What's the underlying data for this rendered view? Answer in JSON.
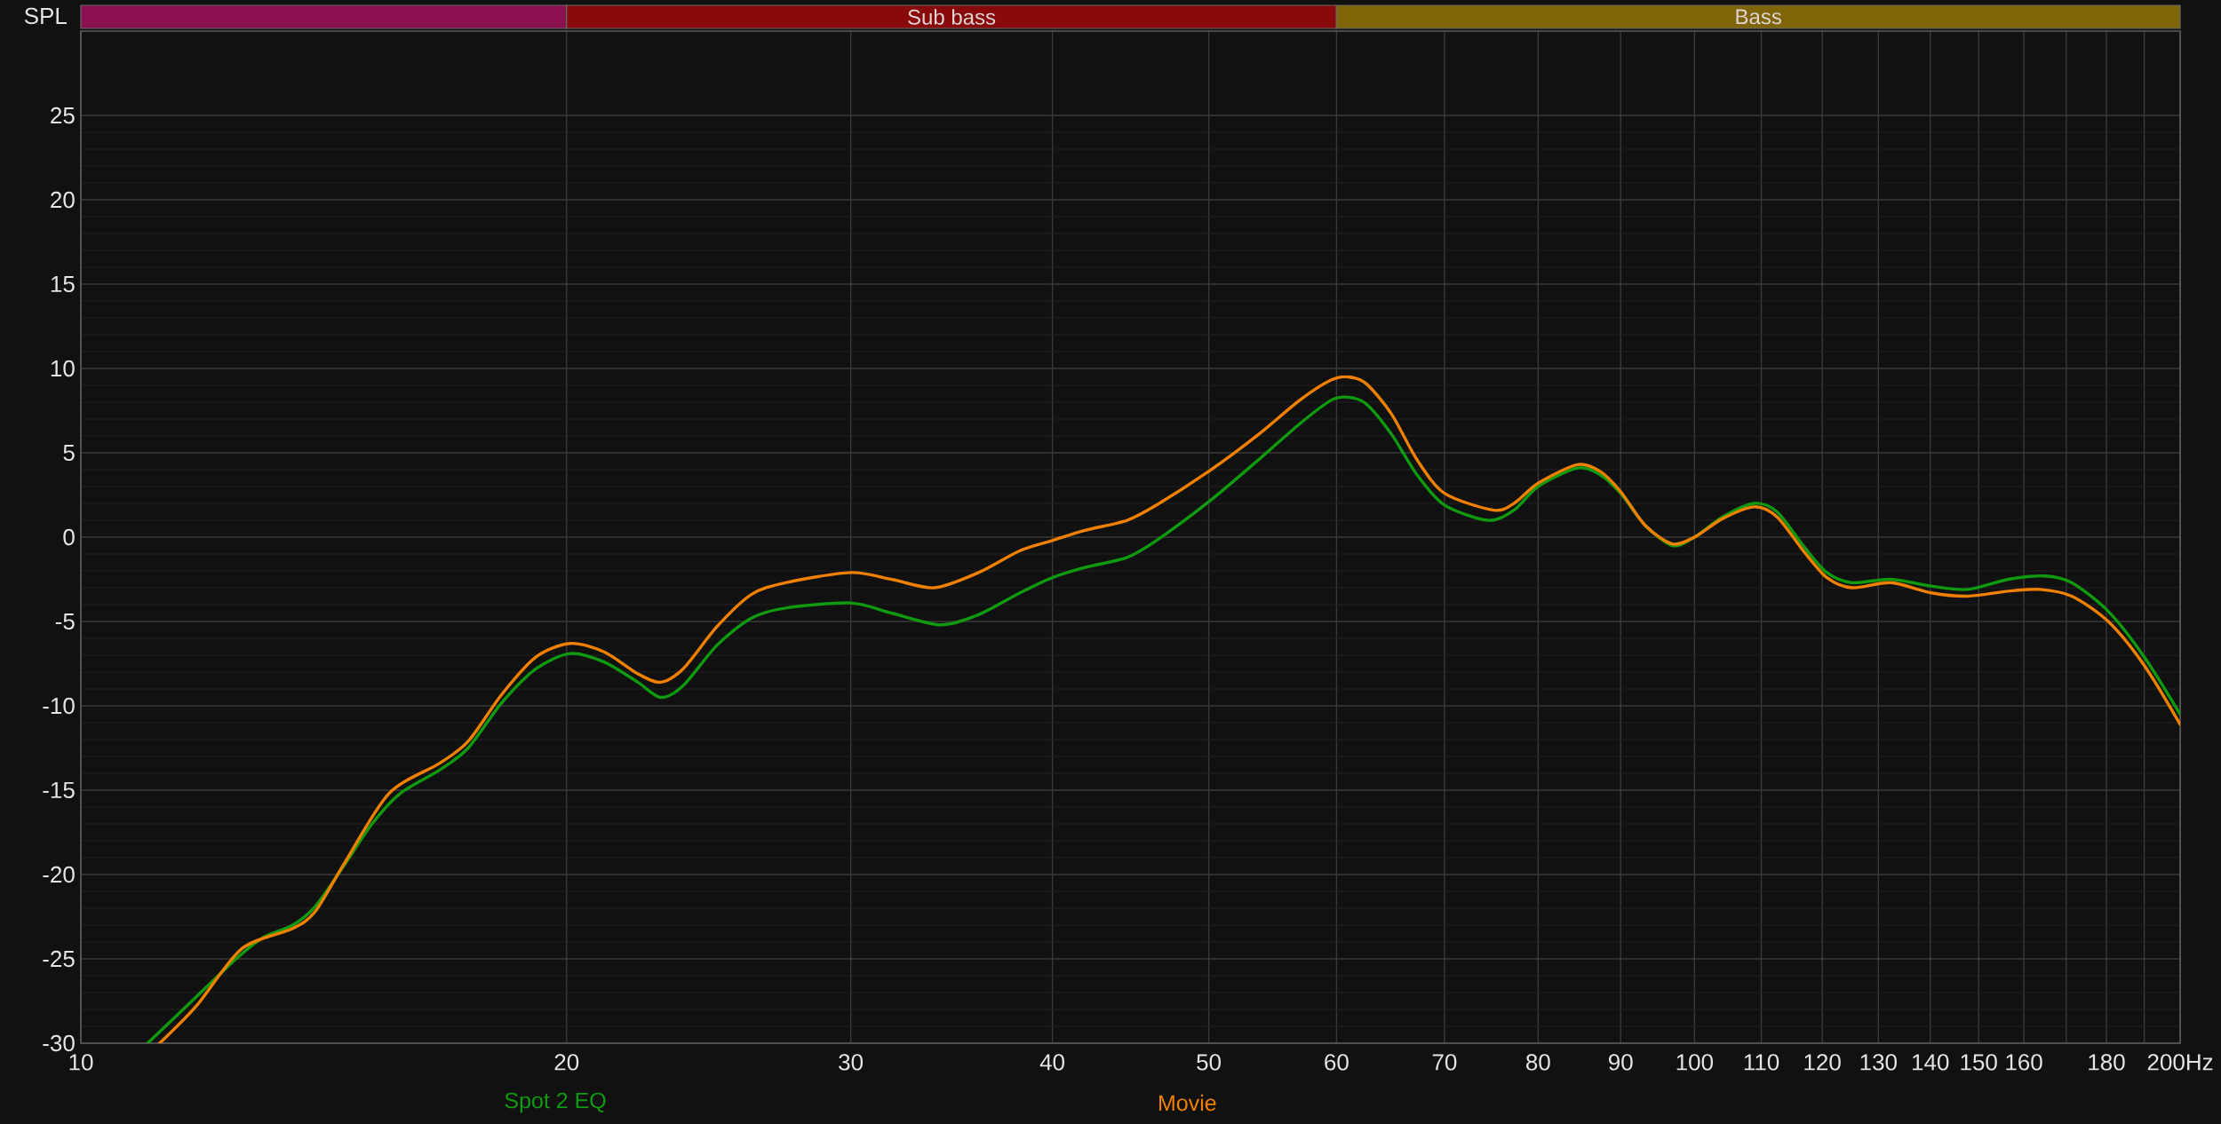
{
  "chart_data": {
    "type": "line",
    "ylabel": "SPL",
    "log": "x",
    "xlim": [
      10,
      200
    ],
    "ylim": [
      -30,
      30
    ],
    "xticks": [
      10,
      20,
      30,
      40,
      50,
      60,
      70,
      80,
      90,
      100,
      110,
      120,
      130,
      140,
      150,
      160,
      {
        "value": 170,
        "label": null
      },
      180,
      {
        "value": 190,
        "label": null
      },
      {
        "value": 200,
        "label": "200Hz"
      }
    ],
    "yticks": [
      -30,
      -25,
      -20,
      -15,
      -10,
      -5,
      0,
      5,
      10,
      15,
      20,
      25
    ],
    "grid": true,
    "legend": "bottom",
    "annotations": [
      "Sub bass",
      "Bass"
    ],
    "series": [
      {
        "name": "Spot 2 EQ",
        "color": "#109a10",
        "x": [
          11.0,
          11.6,
          12.48,
          12.99,
          13.53,
          13.97,
          14.55,
          15.15,
          15.77,
          16.69,
          17.38,
          18.24,
          19.15,
          20.1,
          21.1,
          22.14,
          22.87,
          23.62,
          24.79,
          26.03,
          27.33,
          30,
          31.8,
          34.1,
          36.0,
          38.2,
          40,
          41.9,
          44.5,
          46.4,
          50,
          53.7,
          56.9,
          59.5,
          61.0,
          62.6,
          64.9,
          67.3,
          70,
          74.5,
          77.3,
          80,
          84.6,
          87.4,
          90,
          93.2,
          96.9,
          100,
          104.1,
          108.9,
          112.5,
          117,
          120.8,
          125.2,
          132.3,
          140.2,
          147.6,
          156.5,
          164.8,
          171.3,
          180.5,
          190,
          200
        ],
        "values": [
          -30,
          -27.9,
          -25.0,
          -23.7,
          -23.0,
          -21.9,
          -19.5,
          -17.0,
          -15.2,
          -13.8,
          -12.5,
          -9.8,
          -7.8,
          -6.9,
          -7.4,
          -8.6,
          -9.5,
          -8.8,
          -6.4,
          -4.8,
          -4.2,
          -3.9,
          -4.5,
          -5.2,
          -4.6,
          -3.3,
          -2.4,
          -1.8,
          -1.2,
          -0.2,
          2.1,
          4.6,
          6.7,
          8.1,
          8.3,
          7.9,
          6.1,
          3.7,
          1.9,
          1.0,
          1.6,
          3.0,
          4.1,
          3.7,
          2.6,
          0.7,
          -0.5,
          0,
          1.2,
          2.0,
          1.5,
          -0.6,
          -2.1,
          -2.7,
          -2.5,
          -2.9,
          -3.1,
          -2.5,
          -2.3,
          -2.7,
          -4.4,
          -7.1,
          -10.5
        ]
      },
      {
        "name": "Movie",
        "color": "#f08000",
        "x": [
          11.19,
          11.79,
          12.58,
          13.53,
          13.97,
          14.55,
          15.52,
          16.69,
          17.38,
          18.24,
          19.15,
          20.1,
          21.1,
          22.14,
          22.87,
          23.62,
          24.79,
          26.03,
          27.33,
          30,
          31.8,
          33.8,
          36.0,
          38.2,
          40,
          41.9,
          44.5,
          46.4,
          50,
          53.7,
          56.9,
          59.5,
          61.0,
          62.6,
          64.9,
          67.3,
          70,
          75.1,
          77.3,
          80,
          84.6,
          87.4,
          90,
          93.2,
          96.9,
          100,
          104.1,
          108.9,
          112.5,
          117,
          120.8,
          125.2,
          132.3,
          140.2,
          147.6,
          156.5,
          163.7,
          171.3,
          180.5,
          190,
          200
        ],
        "values": [
          -30,
          -27.8,
          -24.4,
          -23.2,
          -22.2,
          -19.4,
          -15.2,
          -13.4,
          -12.1,
          -9.3,
          -7.1,
          -6.3,
          -6.8,
          -8.1,
          -8.6,
          -7.8,
          -5.3,
          -3.4,
          -2.7,
          -2.1,
          -2.5,
          -3.0,
          -2.1,
          -0.8,
          -0.2,
          0.4,
          1.0,
          1.9,
          3.9,
          6.1,
          8.1,
          9.3,
          9.5,
          9.1,
          7.3,
          4.6,
          2.6,
          1.6,
          2.0,
          3.2,
          4.3,
          3.9,
          2.7,
          0.7,
          -0.4,
          0,
          1.1,
          1.8,
          1.2,
          -0.9,
          -2.4,
          -3.0,
          -2.7,
          -3.3,
          -3.5,
          -3.2,
          -3.1,
          -3.5,
          -5.0,
          -7.6,
          -11.1
        ]
      }
    ]
  }
}
